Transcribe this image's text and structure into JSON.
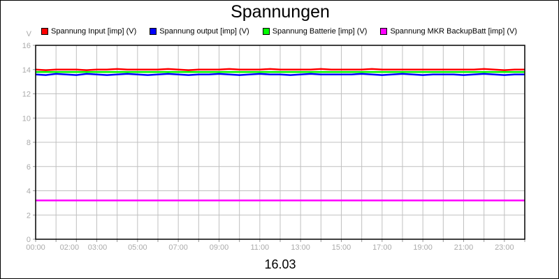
{
  "chart_data": {
    "type": "line",
    "title": "Spannungen",
    "ylabel": "V",
    "xlabel": "16.03",
    "ylim": [
      0,
      16
    ],
    "yticks": [
      0,
      2,
      4,
      6,
      8,
      10,
      12,
      14,
      16
    ],
    "xlim": [
      "00:00",
      "24:00"
    ],
    "xticks": [
      "00:00",
      "02:00",
      "03:00",
      "05:00",
      "07:00",
      "09:00",
      "11:00",
      "13:00",
      "15:00",
      "17:00",
      "19:00",
      "21:00",
      "23:00"
    ],
    "grid": true,
    "legend": "top",
    "x_step_minutes": 30,
    "series": [
      {
        "name": "Spannung Input [imp] (V)",
        "color": "#ff0000",
        "values": [
          14.0,
          13.95,
          14.0,
          14.0,
          14.0,
          13.95,
          14.0,
          14.0,
          14.05,
          14.0,
          14.0,
          14.0,
          14.0,
          14.05,
          14.0,
          13.95,
          14.0,
          14.0,
          14.0,
          14.05,
          14.0,
          14.0,
          14.0,
          14.05,
          14.0,
          14.0,
          14.0,
          14.0,
          14.05,
          14.0,
          14.0,
          14.0,
          14.0,
          14.05,
          14.0,
          14.0,
          14.0,
          14.0,
          14.0,
          14.0,
          14.0,
          14.0,
          14.0,
          14.0,
          14.05,
          14.0,
          13.95,
          14.0,
          14.0
        ]
      },
      {
        "name": "Spannung output [imp] (V)",
        "color": "#0000ff",
        "values": [
          13.6,
          13.55,
          13.65,
          13.6,
          13.55,
          13.65,
          13.6,
          13.55,
          13.6,
          13.65,
          13.6,
          13.55,
          13.6,
          13.65,
          13.6,
          13.55,
          13.6,
          13.6,
          13.65,
          13.6,
          13.55,
          13.6,
          13.65,
          13.6,
          13.6,
          13.55,
          13.6,
          13.65,
          13.6,
          13.6,
          13.6,
          13.6,
          13.65,
          13.6,
          13.55,
          13.6,
          13.65,
          13.6,
          13.55,
          13.6,
          13.6,
          13.6,
          13.55,
          13.6,
          13.65,
          13.6,
          13.55,
          13.6,
          13.6
        ]
      },
      {
        "name": "Spannung Batterie [imp] (V)",
        "color": "#00ff00",
        "values": [
          13.8,
          13.8,
          13.8,
          13.8,
          13.8,
          13.8,
          13.8,
          13.8,
          13.8,
          13.8,
          13.8,
          13.8,
          13.8,
          13.8,
          13.8,
          13.8,
          13.8,
          13.8,
          13.8,
          13.8,
          13.8,
          13.8,
          13.8,
          13.8,
          13.8,
          13.8,
          13.8,
          13.8,
          13.8,
          13.8,
          13.8,
          13.8,
          13.8,
          13.8,
          13.8,
          13.8,
          13.8,
          13.8,
          13.8,
          13.8,
          13.8,
          13.8,
          13.8,
          13.8,
          13.8,
          13.8,
          13.8,
          13.8,
          13.8
        ]
      },
      {
        "name": "Spannung MKR BackupBatt [imp] (V)",
        "color": "#ff00ff",
        "values": [
          3.2,
          3.2,
          3.2,
          3.2,
          3.2,
          3.2,
          3.2,
          3.2,
          3.2,
          3.2,
          3.2,
          3.2,
          3.2,
          3.2,
          3.2,
          3.2,
          3.2,
          3.2,
          3.2,
          3.2,
          3.2,
          3.2,
          3.2,
          3.2,
          3.2,
          3.2,
          3.2,
          3.2,
          3.2,
          3.2,
          3.2,
          3.2,
          3.2,
          3.2,
          3.2,
          3.2,
          3.2,
          3.2,
          3.2,
          3.2,
          3.2,
          3.2,
          3.2,
          3.2,
          3.2,
          3.2,
          3.2,
          3.2,
          3.2
        ]
      }
    ]
  }
}
